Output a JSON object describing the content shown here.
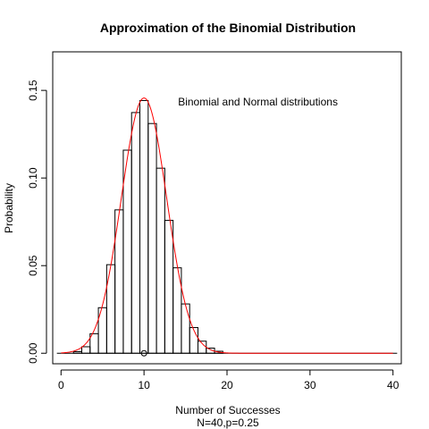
{
  "chart_data": {
    "type": "bar",
    "title": "Approximation of the Binomial Distribution",
    "xlabel": "Number of Successes",
    "xlabel_sub": "N=40,p=0.25",
    "ylabel": "Probability",
    "annotation": "Binomial and Normal distributions",
    "xlim": [
      -1,
      41
    ],
    "ylim": [
      -0.006,
      0.172
    ],
    "x_ticks": [
      0,
      10,
      20,
      30,
      40
    ],
    "y_ticks": [
      0.0,
      0.05,
      0.1,
      0.15
    ],
    "y_tick_labels": [
      "0.00",
      "0.05",
      "0.10",
      "0.15"
    ],
    "grid": false,
    "bars": {
      "x": [
        0,
        1,
        2,
        3,
        4,
        5,
        6,
        7,
        8,
        9,
        10,
        11,
        12,
        13,
        14,
        15,
        16,
        17,
        18,
        19,
        20,
        21,
        22,
        23,
        24,
        25,
        26,
        27,
        28,
        29,
        30,
        31,
        32,
        33,
        34,
        35,
        36,
        37,
        38,
        39,
        40
      ],
      "values": [
        1e-05,
        0.00014,
        0.0009,
        0.0037,
        0.01114,
        0.02599,
        0.05054,
        0.08181,
        0.11589,
        0.13735,
        0.1442,
        0.13109,
        0.10561,
        0.07583,
        0.04875,
        0.02813,
        0.01465,
        0.00689,
        0.00293,
        0.00113,
        0.0004,
        0.00013,
        4e-05,
        1e-05,
        0,
        0,
        0,
        0,
        0,
        0,
        0,
        0,
        0,
        0,
        0,
        0,
        0,
        0,
        0,
        0,
        0
      ],
      "color": "#000000"
    },
    "normal_curve": {
      "mean": 10,
      "sd": 2.7386,
      "color": "#ff0000"
    },
    "mean_marker": {
      "x": 10,
      "y": 0
    }
  }
}
